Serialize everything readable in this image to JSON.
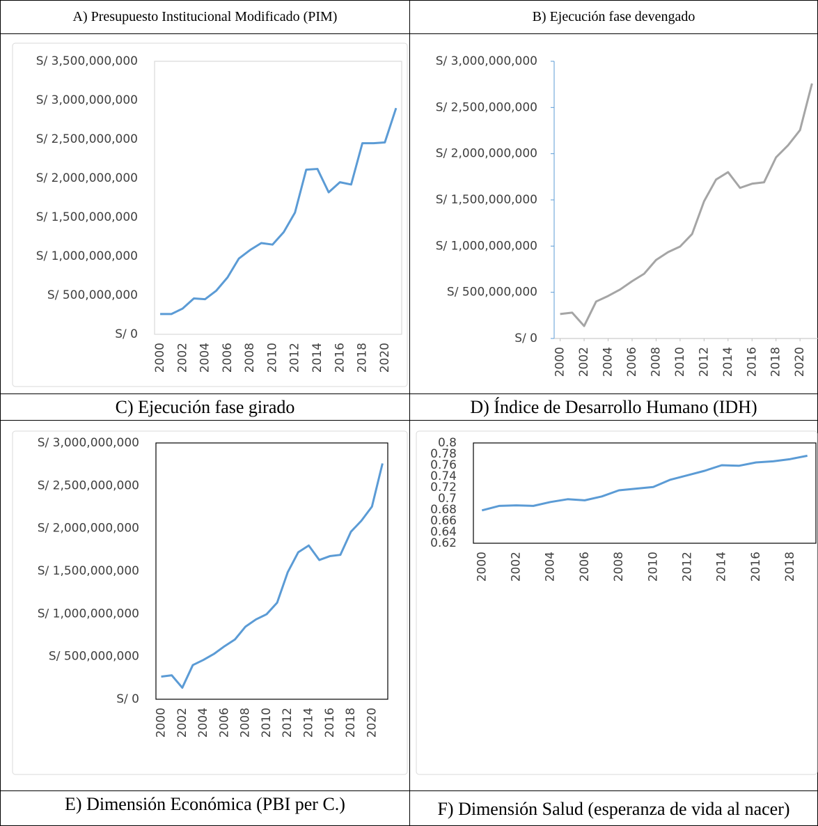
{
  "chart_data": [
    {
      "type": "line",
      "title": "A)  Presupuesto Institucional Modificado (PIM)",
      "x": [
        2000,
        2001,
        2002,
        2003,
        2004,
        2005,
        2006,
        2007,
        2008,
        2009,
        2010,
        2011,
        2012,
        2013,
        2014,
        2015,
        2016,
        2017,
        2018,
        2019,
        2020,
        2021
      ],
      "series": [
        {
          "color": "#5b9bd5",
          "values": [
            260000000,
            260000000,
            330000000,
            460000000,
            450000000,
            560000000,
            730000000,
            970000000,
            1080000000,
            1170000000,
            1150000000,
            1310000000,
            1560000000,
            2110000000,
            2120000000,
            1820000000,
            1950000000,
            1920000000,
            2450000000,
            2450000000,
            2460000000,
            2900000000
          ]
        }
      ],
      "xlim": [
        1999.5,
        2021.5
      ],
      "xticks": [
        2000,
        2002,
        2004,
        2006,
        2008,
        2010,
        2012,
        2014,
        2016,
        2018,
        2020
      ],
      "ylim": [
        0,
        3500000000
      ],
      "yticks": [
        {
          "value": 0,
          "label": "S/ 0"
        },
        {
          "value": 500000000,
          "label": "S/ 500,000,000"
        },
        {
          "value": 1000000000,
          "label": "S/ 1,000,000,000"
        },
        {
          "value": 1500000000,
          "label": "S/ 1,500,000,000"
        },
        {
          "value": 2000000000,
          "label": "S/ 2,000,000,000"
        },
        {
          "value": 2500000000,
          "label": "S/ 2,500,000,000"
        },
        {
          "value": 3000000000,
          "label": "S/ 3,000,000,000"
        },
        {
          "value": 3500000000,
          "label": "S/ 3,500,000,000"
        }
      ]
    },
    {
      "type": "line",
      "title": "B)  Ejecución fase devengado",
      "x": [
        2000,
        2001,
        2002,
        2003,
        2004,
        2005,
        2006,
        2007,
        2008,
        2009,
        2010,
        2011,
        2012,
        2013,
        2014,
        2015,
        2016,
        2017,
        2018,
        2019,
        2020,
        2021
      ],
      "series": [
        {
          "color": "#a5a5a5",
          "values": [
            265000000,
            280000000,
            135000000,
            400000000,
            460000000,
            530000000,
            620000000,
            700000000,
            850000000,
            935000000,
            995000000,
            1130000000,
            1485000000,
            1720000000,
            1800000000,
            1630000000,
            1675000000,
            1690000000,
            1960000000,
            2090000000,
            2255000000,
            2760000000
          ]
        }
      ],
      "xlim": [
        1999.5,
        2021.5
      ],
      "xticks": [
        2000,
        2002,
        2004,
        2006,
        2008,
        2010,
        2012,
        2014,
        2016,
        2018,
        2020
      ],
      "ylim": [
        0,
        3000000000
      ],
      "yticks": [
        {
          "value": 0,
          "label": "S/ 0"
        },
        {
          "value": 500000000,
          "label": "S/ 500,000,000"
        },
        {
          "value": 1000000000,
          "label": "S/ 1,000,000,000"
        },
        {
          "value": 1500000000,
          "label": "S/ 1,500,000,000"
        },
        {
          "value": 2000000000,
          "label": "S/ 2,000,000,000"
        },
        {
          "value": 2500000000,
          "label": "S/ 2,500,000,000"
        },
        {
          "value": 3000000000,
          "label": "S/ 3,000,000,000"
        }
      ]
    },
    {
      "type": "line",
      "title": "C)  Ejecución fase girado",
      "x": [
        2000,
        2001,
        2002,
        2003,
        2004,
        2005,
        2006,
        2007,
        2008,
        2009,
        2010,
        2011,
        2012,
        2013,
        2014,
        2015,
        2016,
        2017,
        2018,
        2019,
        2020,
        2021
      ],
      "series": [
        {
          "color": "#5b9bd5",
          "values": [
            265000000,
            280000000,
            135000000,
            400000000,
            460000000,
            530000000,
            620000000,
            700000000,
            850000000,
            935000000,
            995000000,
            1130000000,
            1485000000,
            1720000000,
            1800000000,
            1630000000,
            1675000000,
            1690000000,
            1960000000,
            2090000000,
            2255000000,
            2760000000
          ]
        }
      ],
      "xlim": [
        1999.5,
        2021.5
      ],
      "xticks": [
        2000,
        2002,
        2004,
        2006,
        2008,
        2010,
        2012,
        2014,
        2016,
        2018,
        2020
      ],
      "ylim": [
        0,
        3000000000
      ],
      "yticks": [
        {
          "value": 0,
          "label": "S/ 0"
        },
        {
          "value": 500000000,
          "label": "S/ 500,000,000"
        },
        {
          "value": 1000000000,
          "label": "S/ 1,000,000,000"
        },
        {
          "value": 1500000000,
          "label": "S/ 1,500,000,000"
        },
        {
          "value": 2000000000,
          "label": "S/ 2,000,000,000"
        },
        {
          "value": 2500000000,
          "label": "S/ 2,500,000,000"
        },
        {
          "value": 3000000000,
          "label": "S/ 3,000,000,000"
        }
      ]
    },
    {
      "type": "line",
      "title": "D)  Índice de Desarrollo Humano (IDH)",
      "x": [
        2000,
        2001,
        2002,
        2003,
        2004,
        2005,
        2006,
        2007,
        2008,
        2009,
        2010,
        2011,
        2012,
        2013,
        2014,
        2015,
        2016,
        2017,
        2018,
        2019
      ],
      "series": [
        {
          "color": "#5b9bd5",
          "values": [
            0.679,
            0.687,
            0.688,
            0.687,
            0.694,
            0.699,
            0.697,
            0.704,
            0.715,
            0.718,
            0.721,
            0.734,
            0.742,
            0.75,
            0.76,
            0.759,
            0.765,
            0.767,
            0.771,
            0.777
          ]
        }
      ],
      "xlim": [
        1999.5,
        2019.5
      ],
      "xticks": [
        2000,
        2002,
        2004,
        2006,
        2008,
        2010,
        2012,
        2014,
        2016,
        2018
      ],
      "ylim": [
        0.62,
        0.8
      ],
      "yticks": [
        0.62,
        0.64,
        0.66,
        0.68,
        0.7,
        0.72,
        0.74,
        0.76,
        0.78,
        0.8
      ]
    }
  ],
  "footer_row": [
    "E)  Dimensión Económica (PBI per C.)",
    "F)  Dimensión Salud (esperanza de vida al nacer)"
  ]
}
